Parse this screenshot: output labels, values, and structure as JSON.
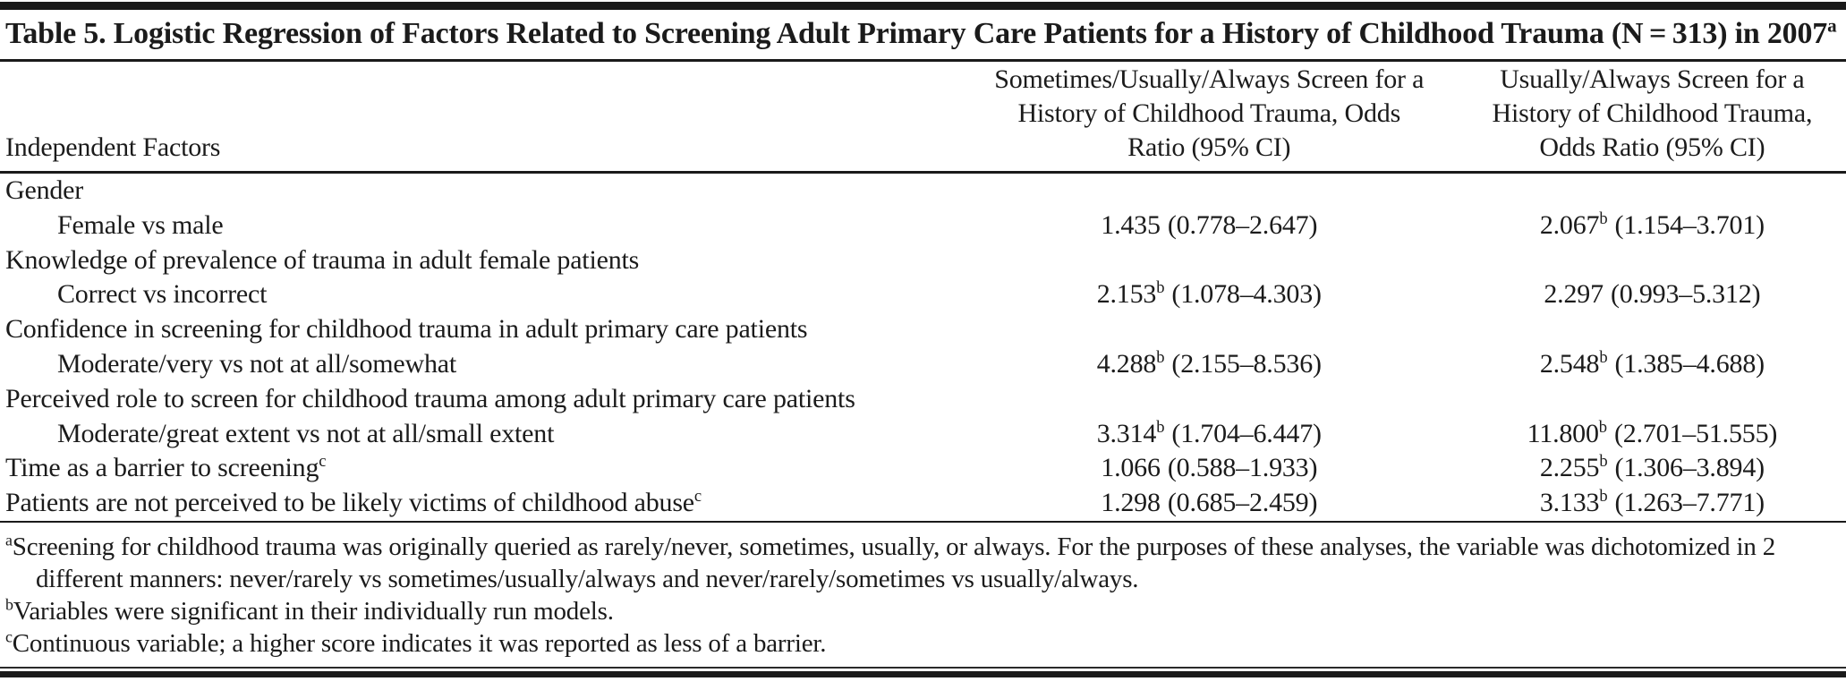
{
  "table": {
    "title": "Table 5. Logistic Regression of Factors Related to Screening Adult Primary Care Patients for a History of Childhood Trauma (N = 313) in 2007",
    "title_sup": "a",
    "header": {
      "factor_label": "Independent Factors",
      "col_sometimes": "Sometimes/Usually/Always Screen for a History of Childhood Trauma, Odds Ratio (95% CI)",
      "col_usually": "Usually/Always Screen for a History of Childhood Trauma, Odds Ratio (95% CI)"
    },
    "rows": [
      {
        "label": "Gender"
      },
      {
        "label": "Female vs male",
        "c1": "1.435",
        "c1_sup": "",
        "c1_ci": "(0.778–2.647)",
        "c2": "2.067",
        "c2_sup": "b",
        "c2_ci": "(1.154–3.701)"
      },
      {
        "label": "Knowledge of prevalence of trauma in adult female patients"
      },
      {
        "label": "Correct vs incorrect",
        "c1": "2.153",
        "c1_sup": "b",
        "c1_ci": "(1.078–4.303)",
        "c2": "2.297",
        "c2_sup": "",
        "c2_ci": "(0.993–5.312)"
      },
      {
        "label": "Confidence in screening for childhood trauma in adult primary care patients"
      },
      {
        "label": "Moderate/very vs not at all/somewhat",
        "c1": "4.288",
        "c1_sup": "b",
        "c1_ci": "(2.155–8.536)",
        "c2": "2.548",
        "c2_sup": "b",
        "c2_ci": "(1.385–4.688)"
      },
      {
        "label": "Perceived role to screen for childhood trauma among adult primary care patients"
      },
      {
        "label": "Moderate/great extent vs not at all/small extent",
        "c1": "3.314",
        "c1_sup": "b",
        "c1_ci": "(1.704–6.447)",
        "c2": "11.800",
        "c2_sup": "b",
        "c2_ci": "(2.701–51.555)"
      },
      {
        "label": "Time as a barrier to screening",
        "label_sup": "c",
        "c1": "1.066",
        "c1_sup": "",
        "c1_ci": "(0.588–1.933)",
        "c2": "2.255",
        "c2_sup": "b",
        "c2_ci": "(1.306–3.894)"
      },
      {
        "label": "Patients are not perceived to be likely victims of childhood abuse",
        "label_sup": "c",
        "c1": "1.298",
        "c1_sup": "",
        "c1_ci": "(0.685–2.459)",
        "c2": "3.133",
        "c2_sup": "b",
        "c2_ci": "(1.263–7.771)"
      }
    ],
    "footnotes": [
      {
        "marker": "a",
        "text": "Screening for childhood trauma was originally queried as rarely/never, sometimes, usually, or always. For the purposes of these analyses, the variable was dichotomized in 2 different manners: never/rarely vs sometimes/usually/always and never/rarely/sometimes vs usually/always."
      },
      {
        "marker": "b",
        "text": "Variables were significant in their individually run models."
      },
      {
        "marker": "c",
        "text": "Continuous variable; a higher score indicates it was reported as less of a barrier."
      }
    ]
  }
}
